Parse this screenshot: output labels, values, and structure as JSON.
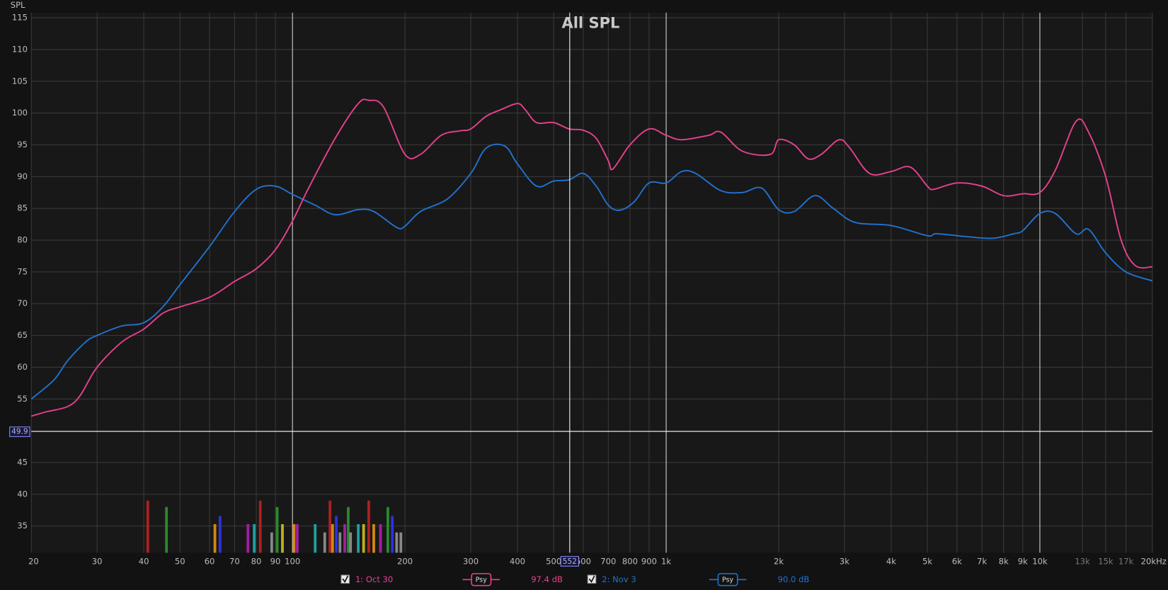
{
  "chart_data": {
    "type": "line",
    "title": "All SPL",
    "y_label": "SPL",
    "xscale": "log",
    "xlim": [
      20,
      20000
    ],
    "ylim": [
      30.8,
      115.8
    ],
    "xticks": [
      20,
      30,
      40,
      50,
      60,
      70,
      80,
      90,
      100,
      200,
      300,
      400,
      500,
      600,
      700,
      800,
      900,
      {
        "value": 1000,
        "label": "1k"
      },
      {
        "value": 2000,
        "label": "2k"
      },
      {
        "value": 3000,
        "label": "3k"
      },
      {
        "value": 4000,
        "label": "4k"
      },
      {
        "value": 5000,
        "label": "5k"
      },
      {
        "value": 6000,
        "label": "6k"
      },
      {
        "value": 7000,
        "label": "7k"
      },
      {
        "value": 8000,
        "label": "8k"
      },
      {
        "value": 9000,
        "label": "9k"
      },
      {
        "value": 10000,
        "label": "10k"
      },
      {
        "value": 13000,
        "label": "13k"
      },
      {
        "value": 15000,
        "label": "15k"
      },
      {
        "value": 17000,
        "label": "17k"
      },
      {
        "value": 20000,
        "label": "20kHz"
      }
    ],
    "yticks": [
      35,
      40,
      45,
      55,
      60,
      65,
      70,
      75,
      80,
      85,
      90,
      95,
      100,
      105,
      110,
      115
    ],
    "major_xticks": [
      100,
      1000,
      10000
    ],
    "grid": true,
    "cursor_x": 552,
    "cursor_y": 49.9,
    "series": [
      {
        "name": "1: Oct 30",
        "color": "#e8418f",
        "smoothing": "Psy",
        "level": "97.4 dB",
        "x": [
          20,
          22,
          25,
          27,
          30,
          35,
          40,
          45,
          50,
          60,
          70,
          80,
          90,
          100,
          110,
          130,
          150,
          160,
          175,
          200,
          220,
          250,
          280,
          300,
          330,
          360,
          400,
          420,
          450,
          500,
          550,
          600,
          650,
          700,
          720,
          800,
          900,
          1000,
          1100,
          1300,
          1400,
          1600,
          1900,
          2000,
          2200,
          2400,
          2600,
          2900,
          3100,
          3500,
          4000,
          4500,
          5000,
          5200,
          6000,
          7000,
          8000,
          9000,
          10000,
          11000,
          12500,
          13500,
          15000,
          16500,
          18000,
          20000
        ],
        "values": [
          52.3,
          53,
          53.8,
          55.5,
          60,
          64,
          66,
          68.5,
          69.5,
          71,
          73.5,
          75.5,
          78.5,
          83,
          88,
          96,
          101.5,
          102,
          101,
          93.5,
          93.5,
          96.5,
          97.2,
          97.5,
          99.5,
          100.5,
          101.5,
          100.5,
          98.5,
          98.5,
          97.5,
          97.3,
          96,
          92.5,
          91.2,
          95,
          97.5,
          96.5,
          95.8,
          96.5,
          97,
          94,
          93.5,
          95.8,
          95,
          92.8,
          93.5,
          95.8,
          94.5,
          90.5,
          90.8,
          91.5,
          88.5,
          88,
          89,
          88.5,
          87,
          87.3,
          87.5,
          91,
          98.7,
          97,
          90,
          80,
          76,
          75.8
        ]
      },
      {
        "name": "2: Nov 3",
        "color": "#2272d0",
        "smoothing": "Psy",
        "level": "90.0 dB",
        "x": [
          20,
          23,
          25,
          28,
          30,
          35,
          40,
          45,
          50,
          60,
          70,
          80,
          90,
          100,
          115,
          130,
          150,
          165,
          190,
          200,
          220,
          260,
          300,
          330,
          370,
          400,
          450,
          500,
          550,
          600,
          650,
          700,
          750,
          820,
          900,
          1000,
          1100,
          1200,
          1400,
          1600,
          1800,
          2000,
          2200,
          2500,
          2800,
          3200,
          4000,
          5000,
          5300,
          6500,
          7500,
          8500,
          9000,
          10000,
          11000,
          12500,
          13500,
          15000,
          17000,
          20000
        ],
        "values": [
          55,
          58,
          61,
          64,
          65,
          66.5,
          67,
          69.5,
          73,
          79,
          84.5,
          88,
          88.5,
          87.2,
          85.5,
          84,
          84.8,
          84.5,
          82,
          82.2,
          84.5,
          86.5,
          90.5,
          94.5,
          94.8,
          92,
          88.5,
          89.3,
          89.5,
          90.5,
          88.5,
          85.5,
          84.7,
          86,
          89,
          89,
          90.8,
          90.5,
          87.8,
          87.5,
          88.2,
          84.8,
          84.5,
          87,
          85,
          82.8,
          82.3,
          80.7,
          81,
          80.5,
          80.3,
          81,
          81.5,
          84.2,
          84.2,
          81,
          81.7,
          78,
          75,
          73.6
        ]
      }
    ],
    "markers": {
      "x": [
        41,
        46,
        62,
        64,
        76,
        79,
        82,
        88,
        91,
        94,
        101,
        103,
        115,
        122,
        126,
        128,
        131,
        134,
        138,
        141,
        143,
        150,
        155,
        160,
        165,
        172,
        180,
        185,
        190,
        195
      ],
      "values": [
        39,
        38,
        35.3,
        36.6,
        35.3,
        35.3,
        39,
        34,
        38,
        35.3,
        35.3,
        35.3,
        35.3,
        34,
        39,
        35.3,
        36.6,
        34,
        35.3,
        38,
        34,
        35.3,
        35.3,
        39,
        35.3,
        35.3,
        38,
        36.6,
        34,
        34
      ],
      "colors": [
        "#b02020",
        "#2a8a2a",
        "#d08a10",
        "#3030e0",
        "#a020a0",
        "#20a0a0",
        "#b02020",
        "#888888",
        "#2a8a2a",
        "#c0b020",
        "#d08a10",
        "#a020a0",
        "#20a0a0",
        "#888888",
        "#b02020",
        "#d08a10",
        "#3030e0",
        "#888888",
        "#a020a0",
        "#2a8a2a",
        "#888888",
        "#20a0a0",
        "#c0b020",
        "#b02020",
        "#d08a10",
        "#a020a0",
        "#2a8a2a",
        "#3030e0",
        "#888888",
        "#888888"
      ]
    }
  }
}
